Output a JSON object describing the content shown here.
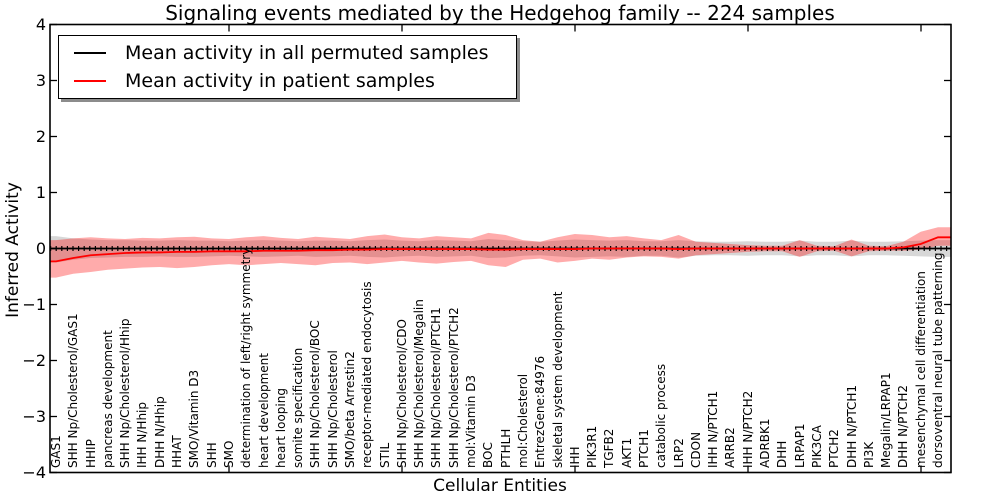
{
  "chart_data": {
    "type": "line",
    "title": "Signaling events mediated by the Hedgehog family -- 224 samples",
    "xlabel": "Cellular Entities",
    "ylabel": "Inferred Activity",
    "ylim": [
      -4,
      4
    ],
    "grid": false,
    "legend_position": "upper left",
    "yticks": [
      4,
      3,
      2,
      1,
      0,
      -1,
      -2,
      -3,
      -4
    ],
    "ytick_labels": [
      "4",
      "3",
      "2",
      "1",
      "0",
      "−1",
      "−2",
      "−3",
      "−4"
    ],
    "legend": [
      "Mean activity in all permuted samples",
      "Mean activity in patient samples"
    ],
    "categories": [
      "GAS1",
      "SHH Np/Cholesterol/GAS1",
      "HHIP",
      "pancreas development",
      "SHH Np/Cholesterol/Hhip",
      "IHH N/Hhip",
      "DHH N/Hhip",
      "HHAT",
      "SMO/Vitamin D3",
      "SHH",
      "SMO",
      "determination of left/right symmetry",
      "heart development",
      "heart looping",
      "somite specification",
      "SHH Np/Cholesterol/BOC",
      "SHH Np/Cholesterol",
      "SMO/beta Arrestin2",
      "receptor-mediated endocytosis",
      "STIL",
      "SHH Np/Cholesterol/CDO",
      "SHH Np/Cholesterol/Megalin",
      "SHH Np/Cholesterol/PTCH1",
      "SHH Np/Cholesterol/PTCH2",
      "mol:Vitamin D3",
      "BOC",
      "PTHLH",
      "mol:Cholesterol",
      "EntrezGene:84976",
      "skeletal system development",
      "IHH",
      "PIK3R1",
      "TGFB2",
      "AKT1",
      "PTCH1",
      "catabolic process",
      "LRP2",
      "CDON",
      "IHH N/PTCH1",
      "ARRB2",
      "IHH N/PTCH2",
      "ADRBK1",
      "DHH",
      "LRPAP1",
      "PIK3CA",
      "PTCH2",
      "DHH N/PTCH1",
      "PI3K",
      "Megalin/LRPAP1",
      "DHH N/PTCH2",
      "mesenchymal cell differentiation",
      "dorsoventral neural tube patterning"
    ],
    "series": [
      {
        "name": "Mean activity in all permuted samples",
        "color": "#000000",
        "values": [
          0,
          0,
          0,
          0,
          0,
          0,
          0,
          0,
          0,
          0,
          0,
          0,
          0,
          0,
          0,
          0,
          0,
          0,
          0,
          0,
          0,
          0,
          0,
          0,
          0,
          0,
          0,
          0,
          0,
          0,
          0,
          0,
          0,
          0,
          0,
          0,
          0,
          0,
          0,
          0,
          0,
          0,
          0,
          0,
          0,
          0,
          0,
          0,
          0,
          0,
          0,
          0
        ]
      },
      {
        "name": "Mean activity in patient samples",
        "color": "#ff0000",
        "values": [
          -0.23,
          -0.17,
          -0.12,
          -0.1,
          -0.08,
          -0.07,
          -0.07,
          -0.06,
          -0.06,
          -0.05,
          -0.05,
          -0.05,
          -0.04,
          -0.04,
          -0.04,
          -0.03,
          -0.03,
          -0.02,
          -0.02,
          -0.01,
          -0.01,
          -0.01,
          -0.01,
          -0.01,
          -0.01,
          -0.02,
          -0.02,
          -0.01,
          -0.01,
          -0.01,
          -0.01,
          0,
          0,
          0,
          0,
          0,
          -0.01,
          0,
          0,
          0,
          0,
          0,
          0,
          0,
          0,
          0,
          0,
          0,
          0,
          0.02,
          0.08,
          0.2
        ]
      }
    ],
    "bands": [
      {
        "name": "permuted samples spread",
        "color": "#c8c8c8",
        "hi": [
          0.22,
          0.18,
          0.16,
          0.15,
          0.15,
          0.14,
          0.14,
          0.15,
          0.14,
          0.14,
          0.13,
          0.14,
          0.15,
          0.14,
          0.13,
          0.14,
          0.14,
          0.13,
          0.15,
          0.16,
          0.14,
          0.13,
          0.15,
          0.14,
          0.13,
          0.17,
          0.15,
          0.13,
          0.12,
          0.14,
          0.16,
          0.15,
          0.14,
          0.15,
          0.13,
          0.13,
          0.15,
          0.13,
          0.12,
          0.12,
          0.13,
          0.12,
          0.12,
          0.14,
          0.12,
          0.12,
          0.14,
          0.12,
          0.12,
          0.13,
          0.14,
          0.15
        ],
        "lo": [
          -0.25,
          -0.2,
          -0.17,
          -0.16,
          -0.15,
          -0.15,
          -0.14,
          -0.15,
          -0.15,
          -0.14,
          -0.13,
          -0.14,
          -0.15,
          -0.14,
          -0.13,
          -0.15,
          -0.14,
          -0.13,
          -0.15,
          -0.16,
          -0.14,
          -0.13,
          -0.15,
          -0.14,
          -0.13,
          -0.17,
          -0.16,
          -0.13,
          -0.12,
          -0.14,
          -0.16,
          -0.15,
          -0.14,
          -0.15,
          -0.13,
          -0.13,
          -0.16,
          -0.13,
          -0.12,
          -0.12,
          -0.13,
          -0.12,
          -0.12,
          -0.14,
          -0.12,
          -0.12,
          -0.14,
          -0.12,
          -0.12,
          -0.13,
          -0.14,
          -0.15
        ]
      },
      {
        "name": "patient samples spread",
        "color": "#ff9999",
        "hi": [
          0.15,
          0.18,
          0.2,
          0.18,
          0.17,
          0.19,
          0.18,
          0.2,
          0.21,
          0.18,
          0.17,
          0.2,
          0.22,
          0.19,
          0.17,
          0.21,
          0.19,
          0.17,
          0.22,
          0.25,
          0.2,
          0.18,
          0.22,
          0.2,
          0.18,
          0.28,
          0.24,
          0.15,
          0.12,
          0.2,
          0.26,
          0.24,
          0.2,
          0.22,
          0.18,
          0.15,
          0.24,
          0.12,
          0.1,
          0.08,
          0.06,
          0.05,
          0.05,
          0.15,
          0.05,
          0.04,
          0.16,
          0.05,
          0.04,
          0.12,
          0.3,
          0.38
        ],
        "lo": [
          -0.52,
          -0.45,
          -0.42,
          -0.38,
          -0.36,
          -0.34,
          -0.33,
          -0.35,
          -0.33,
          -0.3,
          -0.28,
          -0.3,
          -0.28,
          -0.26,
          -0.28,
          -0.3,
          -0.26,
          -0.25,
          -0.28,
          -0.25,
          -0.22,
          -0.25,
          -0.27,
          -0.24,
          -0.22,
          -0.3,
          -0.33,
          -0.2,
          -0.18,
          -0.25,
          -0.22,
          -0.18,
          -0.2,
          -0.16,
          -0.14,
          -0.15,
          -0.18,
          -0.12,
          -0.1,
          -0.08,
          -0.06,
          -0.05,
          -0.05,
          -0.15,
          -0.05,
          -0.04,
          -0.14,
          -0.05,
          -0.04,
          -0.04,
          -0.02,
          0.05
        ]
      }
    ],
    "colors": {
      "line_black": "#000000",
      "line_red": "#ff0000",
      "band_gray": "rgba(110,110,110,0.28)",
      "band_red": "rgba(255,0,0,0.33)",
      "axes": "#000000",
      "background": "#ffffff"
    }
  }
}
